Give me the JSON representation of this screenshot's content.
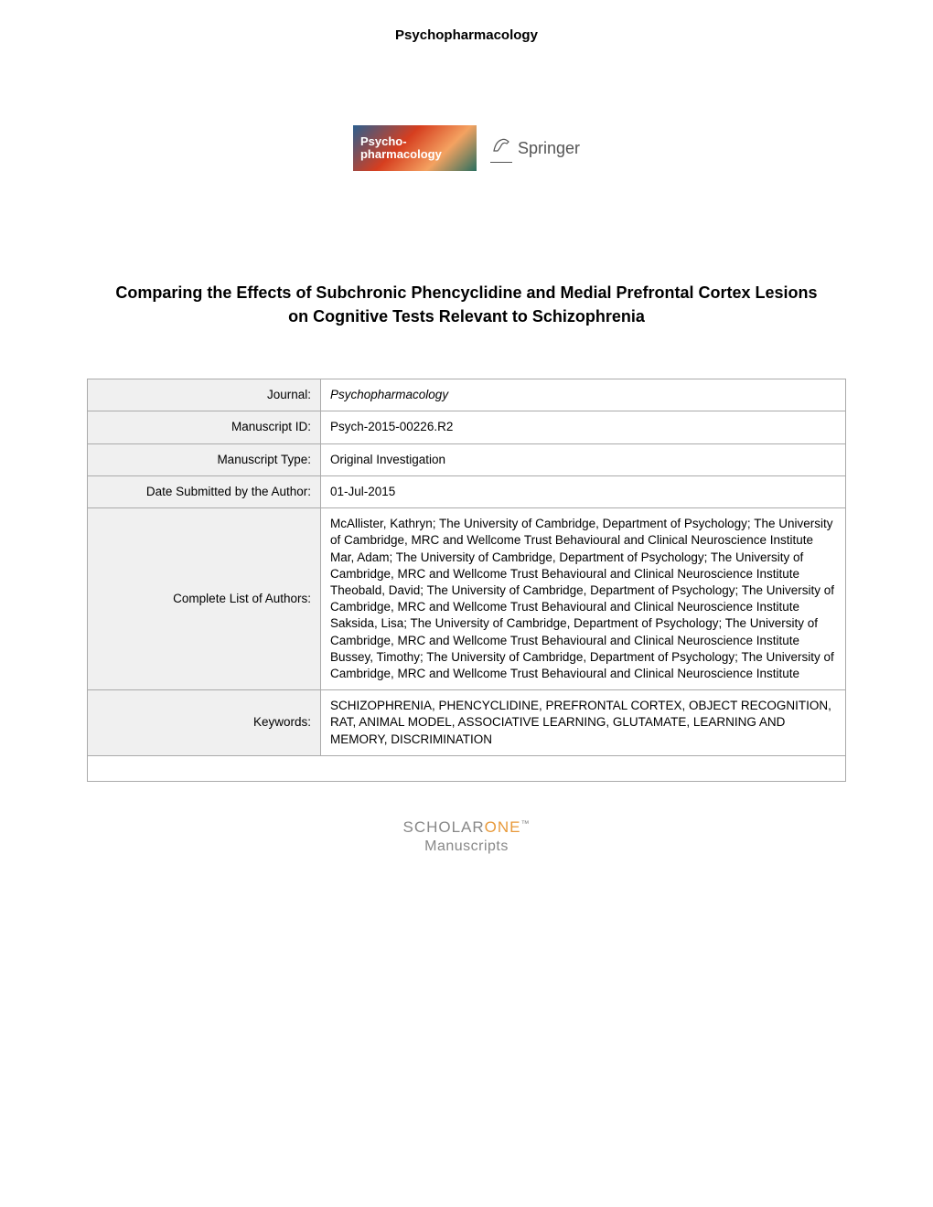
{
  "header": {
    "journal_name": "Psychopharmacology"
  },
  "logos": {
    "psycho_line1": "Psycho-",
    "psycho_line2": "pharmacology",
    "springer_text": "Springer"
  },
  "article": {
    "title": "Comparing the Effects of Subchronic Phencyclidine and Medial Prefrontal Cortex Lesions on Cognitive Tests Relevant to Schizophrenia"
  },
  "metadata": {
    "rows": [
      {
        "label": "Journal:",
        "value": "Psychopharmacology",
        "italic": true
      },
      {
        "label": "Manuscript ID:",
        "value": "Psych-2015-00226.R2",
        "italic": false
      },
      {
        "label": "Manuscript Type:",
        "value": "Original Investigation",
        "italic": false
      },
      {
        "label": "Date Submitted by the Author:",
        "value": "01-Jul-2015",
        "italic": false
      },
      {
        "label": "Complete List of Authors:",
        "value": "McAllister, Kathryn; The University of Cambridge, Department of Psychology; The University of Cambridge, MRC and Wellcome Trust Behavioural and Clinical Neuroscience Institute\nMar, Adam; The University of Cambridge, Department of Psychology; The University of Cambridge, MRC and Wellcome Trust Behavioural and Clinical Neuroscience Institute\nTheobald, David; The University of Cambridge, Department of Psychology; The University of Cambridge, MRC and Wellcome Trust Behavioural and Clinical Neuroscience Institute\nSaksida, Lisa; The University of Cambridge, Department of Psychology; The University of Cambridge, MRC and Wellcome Trust Behavioural and Clinical Neuroscience Institute\nBussey, Timothy; The University of Cambridge, Department of Psychology; The University of Cambridge, MRC and Wellcome Trust Behavioural and Clinical Neuroscience Institute",
        "italic": false
      },
      {
        "label": "Keywords:",
        "value": "SCHIZOPHRENIA, PHENCYCLIDINE, PREFRONTAL CORTEX, OBJECT RECOGNITION, RAT, ANIMAL MODEL, ASSOCIATIVE LEARNING, GLUTAMATE, LEARNING AND MEMORY, DISCRIMINATION",
        "italic": false
      }
    ]
  },
  "footer": {
    "scholar": "SCHOLAR",
    "one": "ONE",
    "tm": "™",
    "sub": "Manuscripts"
  },
  "colors": {
    "text_primary": "#000000",
    "text_secondary": "#888888",
    "accent_orange": "#e89a3c",
    "border": "#aaaaaa",
    "label_bg": "#f0f0f0",
    "page_bg": "#ffffff"
  }
}
